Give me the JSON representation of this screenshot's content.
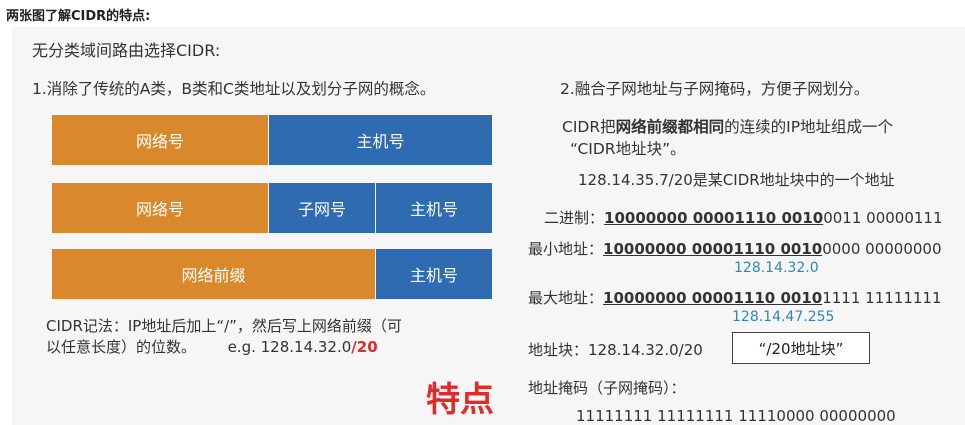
{
  "header": {
    "title": "两张图了解CIDR的特点:"
  },
  "slide": {
    "heading": "无分类域间路由选择CIDR:",
    "point1": "1.消除了传统的A类，B类和C类地址以及划分子网的概念。",
    "point2": "2.融合子网地址与子网掩码，方便子网划分。",
    "diagram": {
      "row1": {
        "network": "网络号",
        "host": "主机号"
      },
      "row2": {
        "network": "网络号",
        "subnet": "子网号",
        "host": "主机号"
      },
      "row3": {
        "prefix": "网络前缀",
        "host": "主机号"
      }
    },
    "notation": {
      "line1": "CIDR记法：IP地址后加上“/”，然后写上网络前缀（可",
      "line2": "以任意长度）的位数。",
      "example_prefix": "e.g. 128.14.32.0",
      "example_suffix": "/20"
    },
    "feature_label": "特点",
    "right": {
      "desc_line1_a": "CIDR把",
      "desc_line1_b": "网络前缀都相同",
      "desc_line1_c": "的连续的IP地址组成一个",
      "desc_line2": "“CIDR地址块”。",
      "example": "128.14.35.7/20是某CIDR地址块中的一个地址",
      "binary": {
        "label": "二进制：",
        "bold": "10000000  00001110  0010",
        "rest": "0011  00000111"
      },
      "min": {
        "label": "最小地址：",
        "bold": "10000000  00001110  0010",
        "rest": "0000  00000000",
        "decimal": "128.14.32.0"
      },
      "max": {
        "label": "最大地址：",
        "bold": "10000000  00001110  0010",
        "rest": "1111  11111111",
        "decimal": "128.14.47.255"
      },
      "block": {
        "label": "地址块：128.14.32.0/20",
        "box": "“/20地址块”"
      },
      "mask": {
        "label": "地址掩码（子网掩码）：",
        "value": "11111111  11111111  11110000  00000000"
      }
    }
  },
  "colors": {
    "orange": "#d9892b",
    "blue": "#2f6bb0",
    "red": "#e32a2a",
    "link": "#2e86c1"
  }
}
